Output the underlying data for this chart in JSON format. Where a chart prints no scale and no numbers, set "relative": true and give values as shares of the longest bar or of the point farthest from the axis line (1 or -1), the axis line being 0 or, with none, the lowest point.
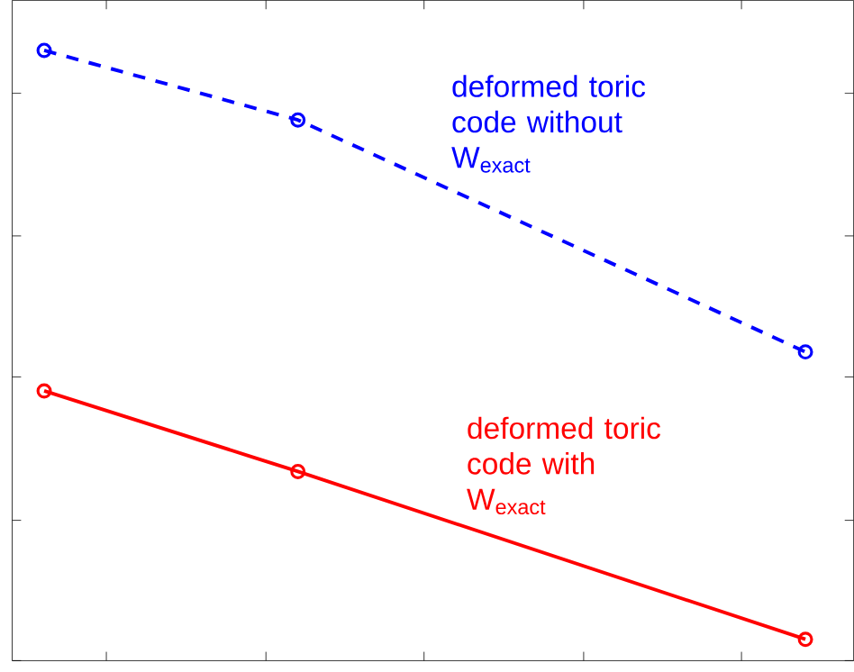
{
  "chart_data": {
    "type": "line",
    "relative": true,
    "categories": [
      null,
      null,
      null,
      null
    ],
    "marker": "circle",
    "grid": false,
    "legend": false,
    "series": [
      {
        "name": "deformed toric code without W$_{exact}$",
        "color": "#0000ff",
        "line_style": "dashed",
        "values": [
          1,
          0.886,
          null,
          0.506
        ]
      },
      {
        "name": "deformed toric code with W$_{exact}$",
        "color": "#ff0000",
        "line_style": "solid",
        "values": [
          0.442,
          0.31,
          null,
          0.035
        ]
      }
    ]
  }
}
